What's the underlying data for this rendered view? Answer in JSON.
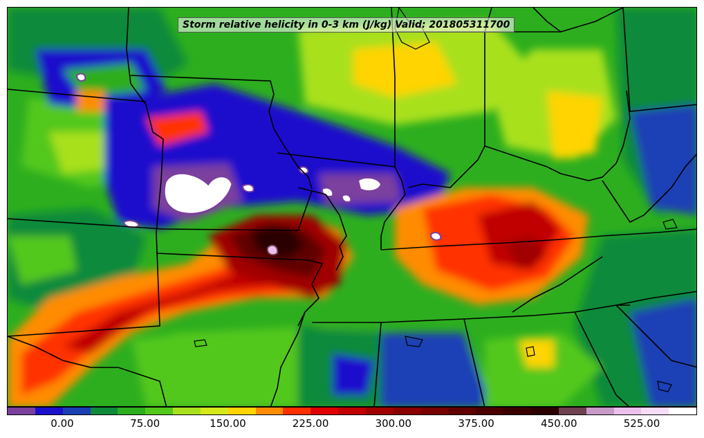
{
  "title": "Storm relative helicity in 0-3 km (J/kg) Valid: 201805311700",
  "colorbar": {
    "colors": [
      "#7b3f9e",
      "#1a10cc",
      "#1a3fb5",
      "#0e8a3a",
      "#2dae1f",
      "#52c81a",
      "#a8e01e",
      "#d4e81c",
      "#ffd400",
      "#ff8c00",
      "#ff3000",
      "#e00000",
      "#c00000",
      "#a00000",
      "#8a0000",
      "#780000",
      "#600000",
      "#4a0000",
      "#3a0000",
      "#2a0000",
      "#6e4050",
      "#c89ac8",
      "#ecc0ec",
      "#f7dcf7",
      "#ffffff"
    ],
    "ticks": [
      "0.00",
      "75.00",
      "150.00",
      "225.00",
      "300.00",
      "375.00",
      "450.00",
      "525.00"
    ]
  }
}
